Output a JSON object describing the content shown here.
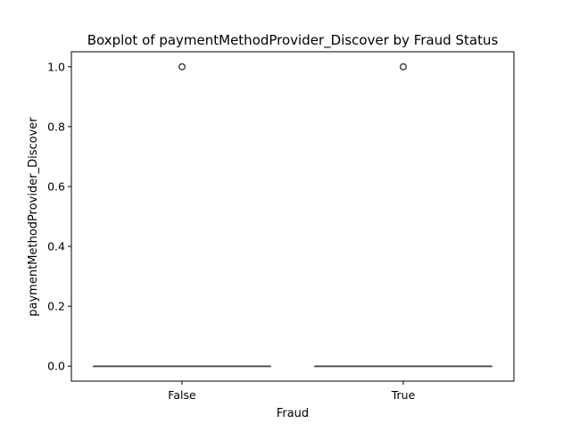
{
  "chart_data": {
    "type": "boxplot",
    "title": "Boxplot of paymentMethodProvider_Discover by Fraud Status",
    "xlabel": "Fraud",
    "ylabel": "paymentMethodProvider_Discover",
    "categories": [
      "False",
      "True"
    ],
    "ylim": [
      -0.05,
      1.05
    ],
    "yticks": [
      0.0,
      0.2,
      0.4,
      0.6,
      0.8,
      1.0
    ],
    "ytick_labels": [
      "0.0",
      "0.2",
      "0.4",
      "0.6",
      "0.8",
      "1.0"
    ],
    "grid": false,
    "boxes": [
      {
        "category": "False",
        "min": 0.0,
        "q1": 0.0,
        "median": 0.0,
        "q3": 0.0,
        "max": 0.0,
        "outliers": [
          1.0
        ]
      },
      {
        "category": "True",
        "min": 0.0,
        "q1": 0.0,
        "median": 0.0,
        "q3": 0.0,
        "max": 0.0,
        "outliers": [
          1.0
        ]
      }
    ],
    "colors": {
      "box": "#444444",
      "axis": "#000000",
      "background": "#ffffff"
    }
  }
}
